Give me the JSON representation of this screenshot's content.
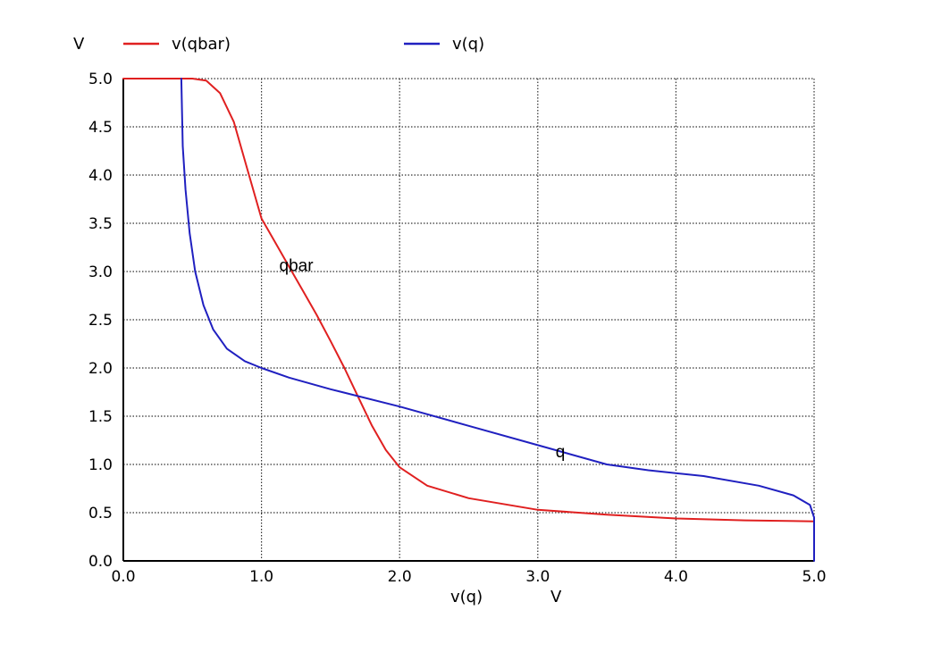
{
  "chart_data": {
    "type": "line",
    "title": "",
    "xlabel": "v(q)",
    "xunit": "V",
    "yunit": "V",
    "xlim": [
      0.0,
      5.0
    ],
    "ylim": [
      0.0,
      5.0
    ],
    "x_ticks": [
      "0.0",
      "1.0",
      "2.0",
      "3.0",
      "4.0",
      "5.0"
    ],
    "y_ticks": [
      "0.0",
      "0.5",
      "1.0",
      "1.5",
      "2.0",
      "2.5",
      "3.0",
      "3.5",
      "4.0",
      "4.5",
      "5.0"
    ],
    "grid": true,
    "legend_position": "top",
    "series": [
      {
        "name": "v(qbar)",
        "color": "#e02020",
        "x": [
          0.0,
          0.4,
          0.5,
          0.6,
          0.7,
          0.8,
          0.9,
          1.0,
          1.1,
          1.2,
          1.3,
          1.4,
          1.5,
          1.6,
          1.7,
          1.8,
          1.9,
          2.0,
          2.2,
          2.5,
          3.0,
          3.5,
          4.0,
          4.5,
          5.0
        ],
        "y": [
          5.0,
          5.0,
          5.0,
          4.98,
          4.85,
          4.55,
          4.05,
          3.55,
          3.3,
          3.05,
          2.8,
          2.55,
          2.28,
          2.0,
          1.7,
          1.4,
          1.15,
          0.97,
          0.78,
          0.65,
          0.53,
          0.48,
          0.44,
          0.42,
          0.41
        ]
      },
      {
        "name": "v(q)",
        "color": "#2020c0",
        "x": [
          0.42,
          0.43,
          0.45,
          0.48,
          0.52,
          0.58,
          0.65,
          0.75,
          0.88,
          1.0,
          1.2,
          1.5,
          2.0,
          2.5,
          3.0,
          3.5,
          3.8,
          4.2,
          4.6,
          4.85,
          4.97,
          5.0,
          5.0
        ],
        "y": [
          5.0,
          4.3,
          3.85,
          3.4,
          3.0,
          2.65,
          2.4,
          2.2,
          2.07,
          2.0,
          1.9,
          1.78,
          1.6,
          1.4,
          1.2,
          1.0,
          0.94,
          0.88,
          0.78,
          0.68,
          0.58,
          0.45,
          0.0
        ]
      }
    ],
    "annotations": [
      {
        "text": "qbar",
        "x": 1.2,
        "y": 3.05
      },
      {
        "text": "q",
        "x": 3.2,
        "y": 1.12
      }
    ]
  }
}
